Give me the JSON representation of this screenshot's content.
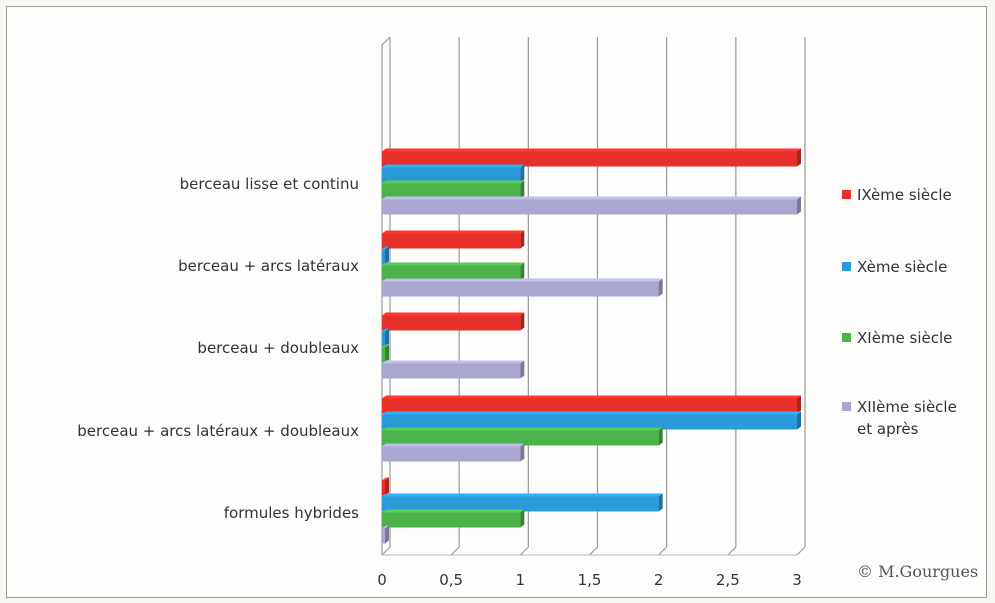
{
  "chart_data": {
    "type": "bar",
    "orientation": "horizontal",
    "categories": [
      "berceau lisse et continu",
      "berceau +  arcs latéraux",
      "berceau + doubleaux",
      "berceau +  arcs latéraux + doubleaux",
      "formules hybrides"
    ],
    "series": [
      {
        "name": "IXème siècle",
        "color": "#e8302a",
        "values": [
          3,
          1,
          1,
          3,
          0.02
        ]
      },
      {
        "name": "Xème siècle",
        "color": "#2a9ad8",
        "values": [
          1,
          0.02,
          0.02,
          3,
          2
        ]
      },
      {
        "name": "XIème siècle",
        "color": "#4cb34a",
        "values": [
          1,
          1,
          0.02,
          2,
          1
        ]
      },
      {
        "name": "XIIème siècle et après",
        "color": "#a9a6cf",
        "values": [
          3,
          2,
          1,
          1,
          0.02
        ]
      }
    ],
    "xlim": [
      0,
      3
    ],
    "x_ticks": [
      "0",
      "0,5",
      "1",
      "1,5",
      "2",
      "2,5",
      "3"
    ],
    "grid": true,
    "legend_position": "right",
    "legend_lines": [
      [
        "IXème siècle"
      ],
      [
        "Xème siècle"
      ],
      [
        "XIème siècle"
      ],
      [
        "XIIème siècle",
        "et après"
      ]
    ]
  },
  "credit": "© M.Gourgues"
}
